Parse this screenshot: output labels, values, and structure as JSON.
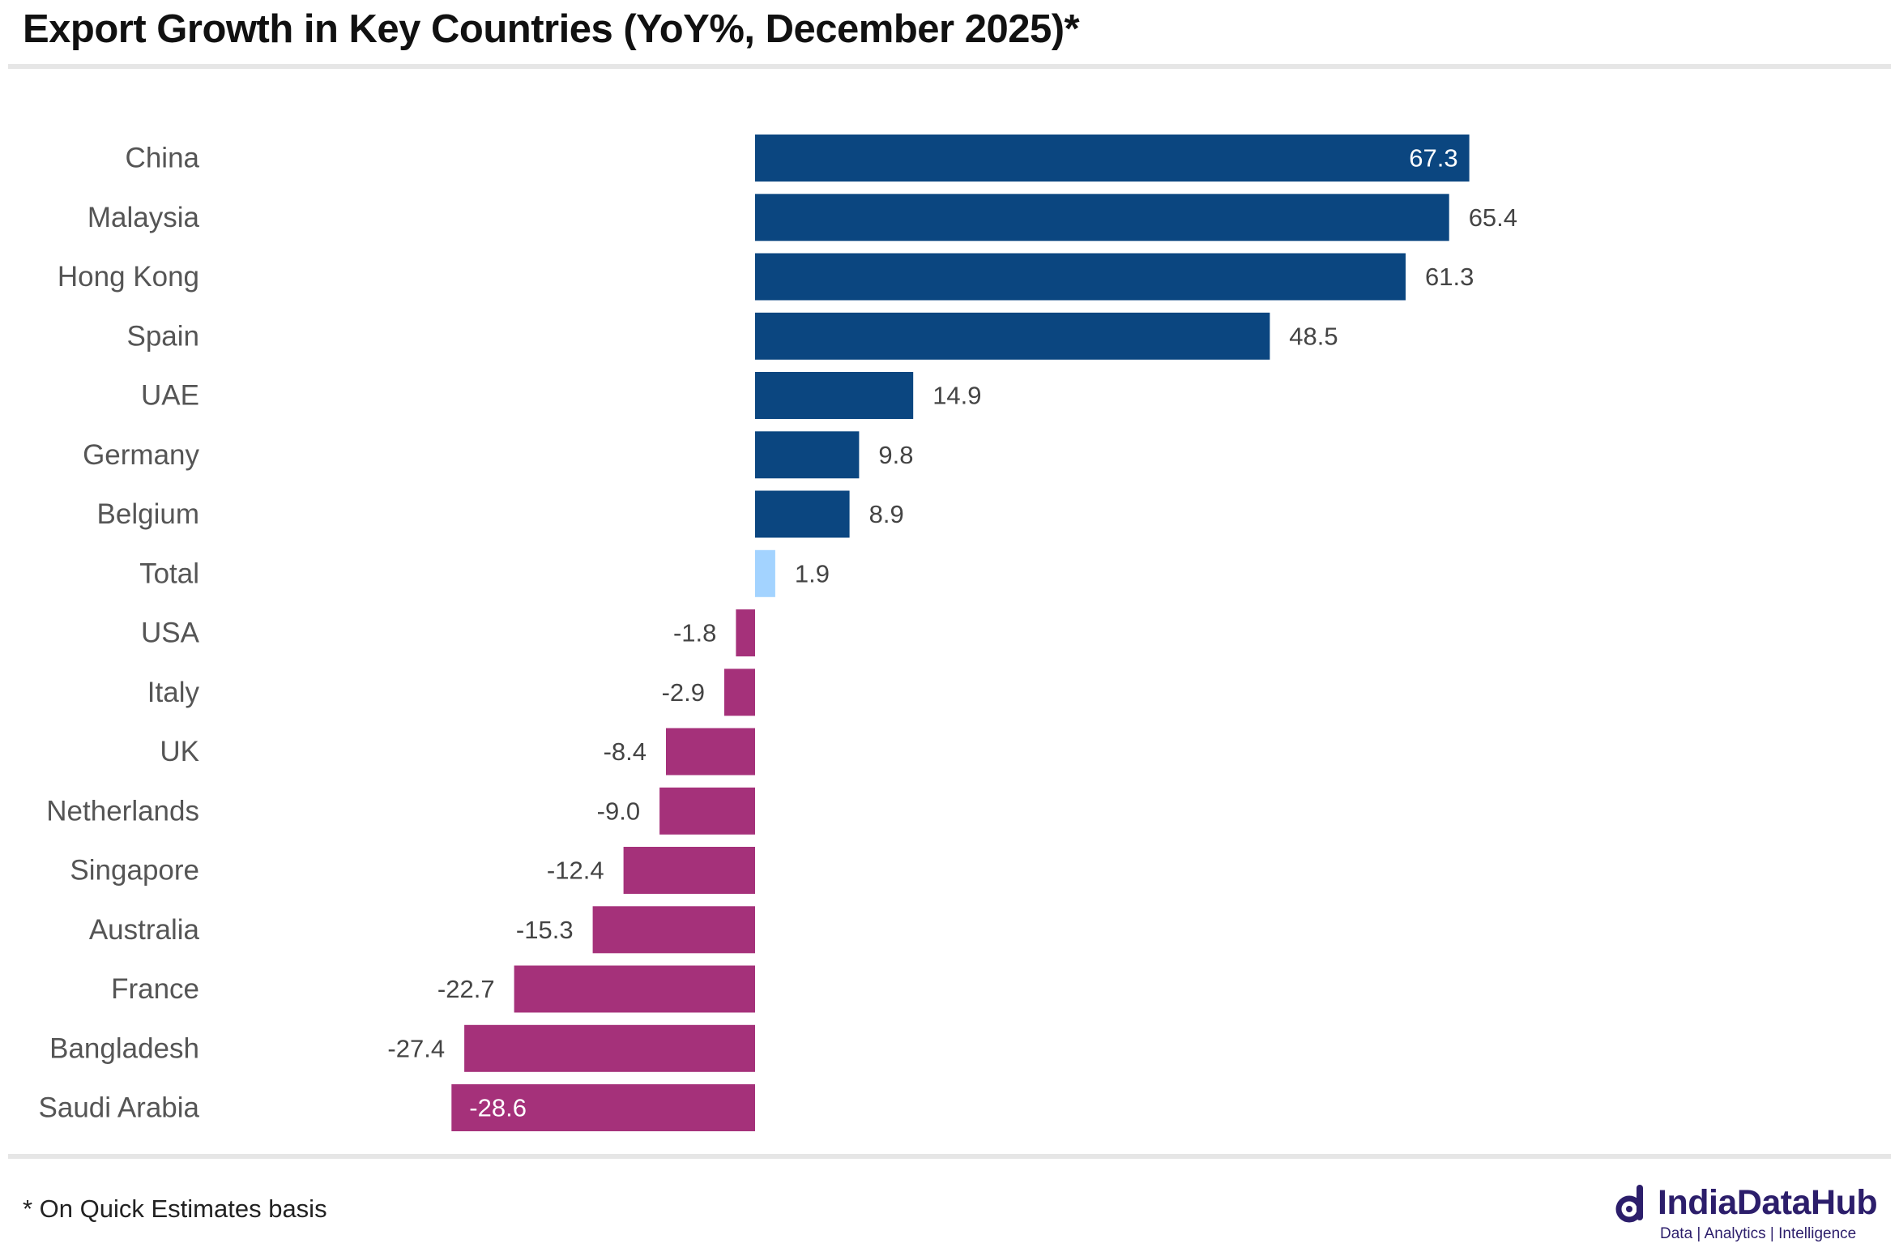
{
  "chart_data": {
    "type": "bar",
    "orientation": "horizontal",
    "title": "Export Growth in Key Countries (YoY%, December 2025)*",
    "xlabel": "",
    "ylabel": "",
    "categories": [
      "China",
      "Malaysia",
      "Hong Kong",
      "Spain",
      "UAE",
      "Germany",
      "Belgium",
      "Total",
      "USA",
      "Italy",
      "UK",
      "Netherlands",
      "Singapore",
      "Australia",
      "France",
      "Bangladesh",
      "Saudi Arabia"
    ],
    "values": [
      67.3,
      65.4,
      61.3,
      48.5,
      14.9,
      9.8,
      8.9,
      1.9,
      -1.8,
      -2.9,
      -8.4,
      -9.0,
      -12.4,
      -15.3,
      -22.7,
      -27.4,
      -28.6
    ],
    "labels": [
      "67.3",
      "65.4",
      "61.3",
      "48.5",
      "14.9",
      "9.8",
      "8.9",
      "1.9",
      "-1.8",
      "-2.9",
      "-8.4",
      "-9.0",
      "-12.4",
      "-15.3",
      "-22.7",
      "-27.4",
      "-28.6"
    ],
    "xlim": [
      -28.6,
      67.3
    ],
    "grid": false,
    "legend": "none",
    "colors": {
      "positive": "#0b4680",
      "total": "#a3d3ff",
      "negative": "#a5317a"
    }
  },
  "footnote": "* On Quick Estimates basis",
  "brand": {
    "name": "IndiaDataHub",
    "tagline": "Data | Analytics | Intelligence",
    "color": "#2c1e6b"
  }
}
